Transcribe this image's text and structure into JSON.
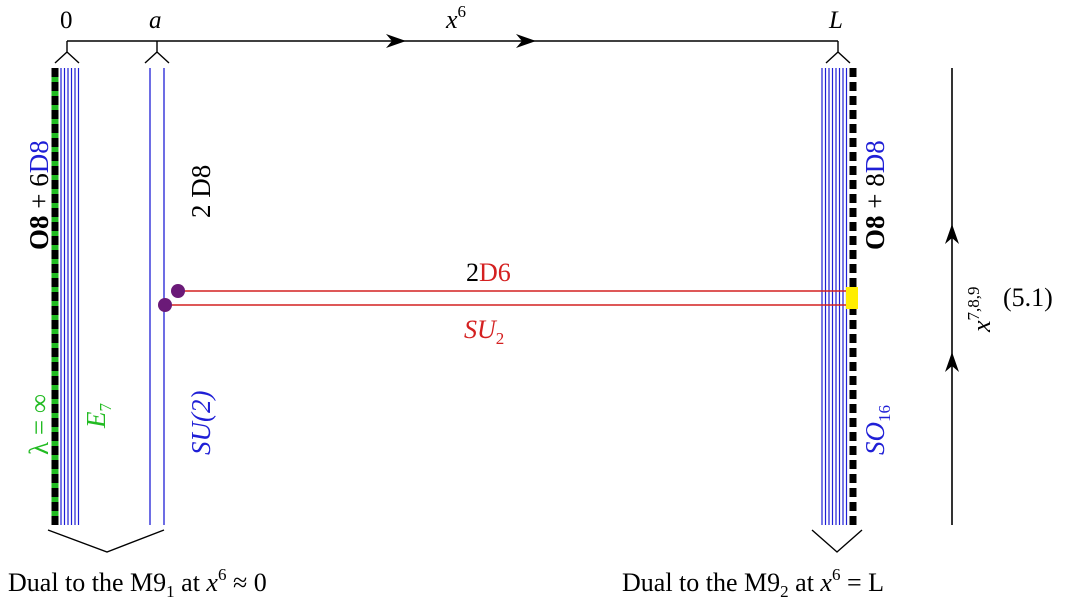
{
  "colors": {
    "black": "#000000",
    "blue": "#1f1fd6",
    "green": "#22bb22",
    "red": "#d42020",
    "purple": "#6b1a78",
    "yellow": "#ffee00"
  },
  "axis": {
    "label_base": "x",
    "label_sup": "6",
    "tick_zero": "0",
    "tick_a": "a",
    "tick_L": "L"
  },
  "left_stack": {
    "label_bold": "O8",
    "label_plus": " + 6",
    "label_colored": "D8",
    "lambda_label": "λ = ∞",
    "group_label_base": "E",
    "group_label_sub": "7"
  },
  "middle_stack": {
    "label": "2 D8",
    "group_label": "SU(2)"
  },
  "right_stack": {
    "label_bold": "O8",
    "label_plus": " + 8",
    "label_colored": "D8",
    "group_label_base": "SO",
    "group_label_sub": "16"
  },
  "d6": {
    "label_prefix": "2",
    "label_colored": "D6",
    "group_label_base": "SU",
    "group_label_sub": "2"
  },
  "vertical_axis": {
    "label_base": "x",
    "label_sup": "7,8,9"
  },
  "equation_number": "(5.1)",
  "captions": {
    "left_prefix": "Dual to the M9",
    "left_sub": "1",
    "left_mid": " at ",
    "left_x": "x",
    "left_sup": "6",
    "left_rel": " ≈ 0",
    "right_prefix": "Dual to the M9",
    "right_sub": "2",
    "right_mid": " at ",
    "right_x": "x",
    "right_sup": "6",
    "right_rel": " = L"
  }
}
